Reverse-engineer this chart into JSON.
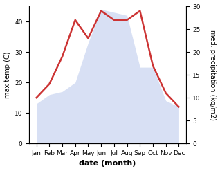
{
  "months": [
    "Jan",
    "Feb",
    "Mar",
    "Apr",
    "May",
    "Jun",
    "Jul",
    "Aug",
    "Sep",
    "Oct",
    "Nov",
    "Dec"
  ],
  "max_temp": [
    13,
    16,
    17,
    20,
    33,
    44,
    43,
    42,
    25,
    25,
    14,
    12
  ],
  "precip": [
    10,
    13,
    19,
    27,
    23,
    29,
    27,
    27,
    29,
    17,
    11,
    8
  ],
  "temp_fill_color": "#c8d4f0",
  "temp_fill_alpha": 0.7,
  "precip_color": "#cc3333",
  "left_ylim": [
    0,
    45
  ],
  "right_ylim": [
    0,
    30
  ],
  "left_ylabel": "max temp (C)",
  "right_ylabel": "med. precipitation (kg/m2)",
  "xlabel": "date (month)",
  "left_yticks": [
    0,
    10,
    20,
    30,
    40
  ],
  "right_yticks": [
    0,
    5,
    10,
    15,
    20,
    25,
    30
  ],
  "bg_color": "#ffffff",
  "precip_linewidth": 1.8,
  "ylabel_fontsize": 7,
  "xlabel_fontsize": 8,
  "tick_fontsize": 6.5
}
